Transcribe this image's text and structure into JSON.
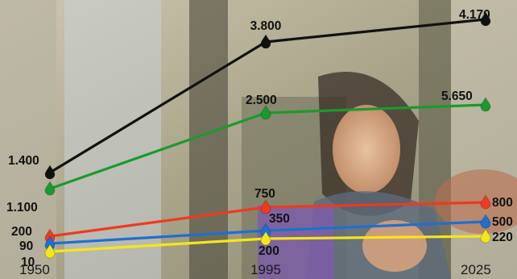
{
  "chart_data": {
    "type": "line",
    "x": [
      "1950",
      "1995",
      "2025"
    ],
    "series": [
      {
        "color": "#111111",
        "values": [
          1400,
          3800,
          4170
        ],
        "labels": [
          "1.400",
          "3.800",
          "4.170"
        ]
      },
      {
        "color": "#1a9a2e",
        "values": [
          1100,
          2500,
          5650
        ],
        "labels": [
          "1.100",
          "2.500",
          "5.650"
        ]
      },
      {
        "color": "#ee3a22",
        "values": [
          200,
          750,
          800
        ],
        "labels": [
          "200",
          "750",
          "800"
        ]
      },
      {
        "color": "#1f6fd0",
        "values": [
          90,
          350,
          500
        ],
        "labels": [
          "90",
          "350",
          "500"
        ]
      },
      {
        "color": "#f5e61a",
        "values": [
          10,
          200,
          220
        ],
        "labels": [
          "10",
          "200",
          "220"
        ]
      }
    ],
    "grid": false,
    "legend": "none"
  }
}
